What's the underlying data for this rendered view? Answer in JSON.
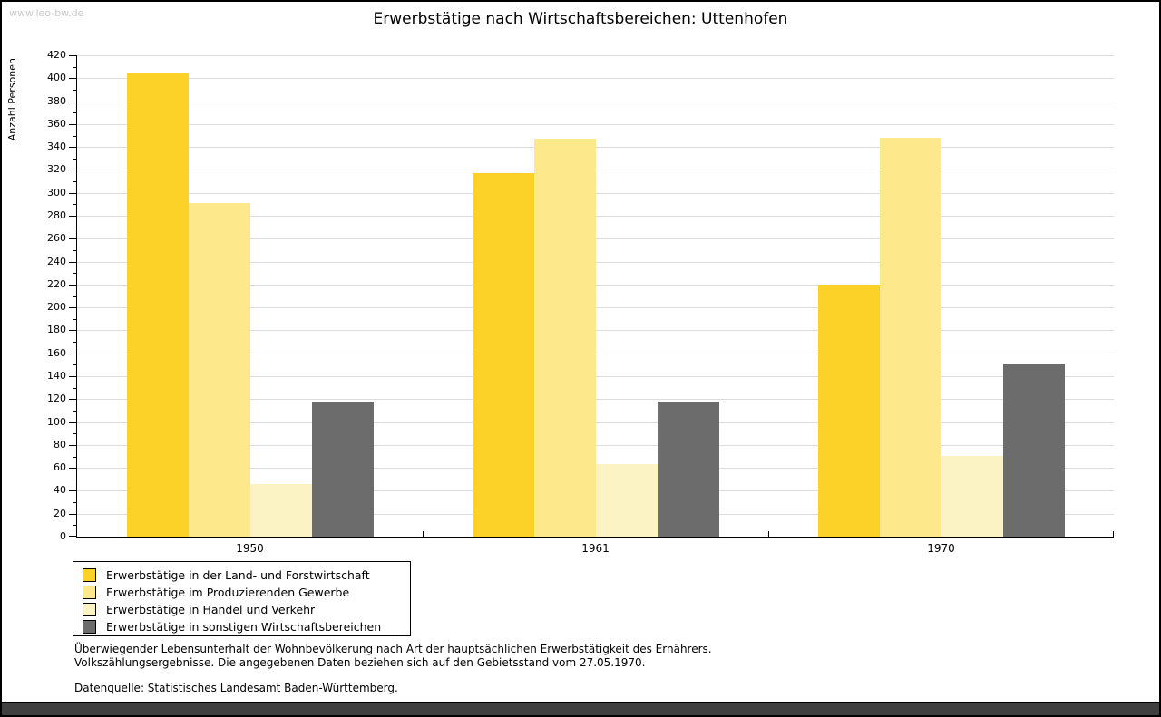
{
  "watermark": "www.leo-bw.de",
  "title": "Erwerbstätige nach Wirtschaftsbereichen: Uttenhofen",
  "chart_data": {
    "type": "bar",
    "title": "Erwerbstätige nach Wirtschaftsbereichen: Uttenhofen",
    "xlabel": "",
    "ylabel": "Anzahl Personen",
    "categories": [
      "1950",
      "1961",
      "1970"
    ],
    "series": [
      {
        "name": "Erwerbstätige in der Land- und Forstwirtschaft",
        "color": "#fcd228",
        "values": [
          405,
          317,
          220
        ]
      },
      {
        "name": "Erwerbstätige im Produzierenden Gewerbe",
        "color": "#fde88c",
        "values": [
          291,
          347,
          348
        ]
      },
      {
        "name": "Erwerbstätige in Handel und Verkehr",
        "color": "#fcf3c5",
        "values": [
          46,
          63,
          70
        ]
      },
      {
        "name": "Erwerbstätige in sonstigen Wirtschaftsbereichen",
        "color": "#6c6c6c",
        "values": [
          118,
          118,
          150
        ]
      }
    ],
    "ylim": [
      0,
      420
    ],
    "y_major_step": 20,
    "y_minor_step": 10,
    "grid": "horizontal-major-only",
    "gridline_color": "#dcdcdc",
    "legend_position": "bottom-left"
  },
  "footer": {
    "line1": "Überwiegender Lebensunterhalt der Wohnbevölkerung nach Art der hauptsächlichen Erwerbstätigkeit des Ernährers.",
    "line2": "Volkszählungsergebnisse. Die angegebenen Daten beziehen sich auf den Gebietsstand vom 27.05.1970.",
    "source": "Datenquelle: Statistisches Landesamt Baden-Württemberg."
  }
}
